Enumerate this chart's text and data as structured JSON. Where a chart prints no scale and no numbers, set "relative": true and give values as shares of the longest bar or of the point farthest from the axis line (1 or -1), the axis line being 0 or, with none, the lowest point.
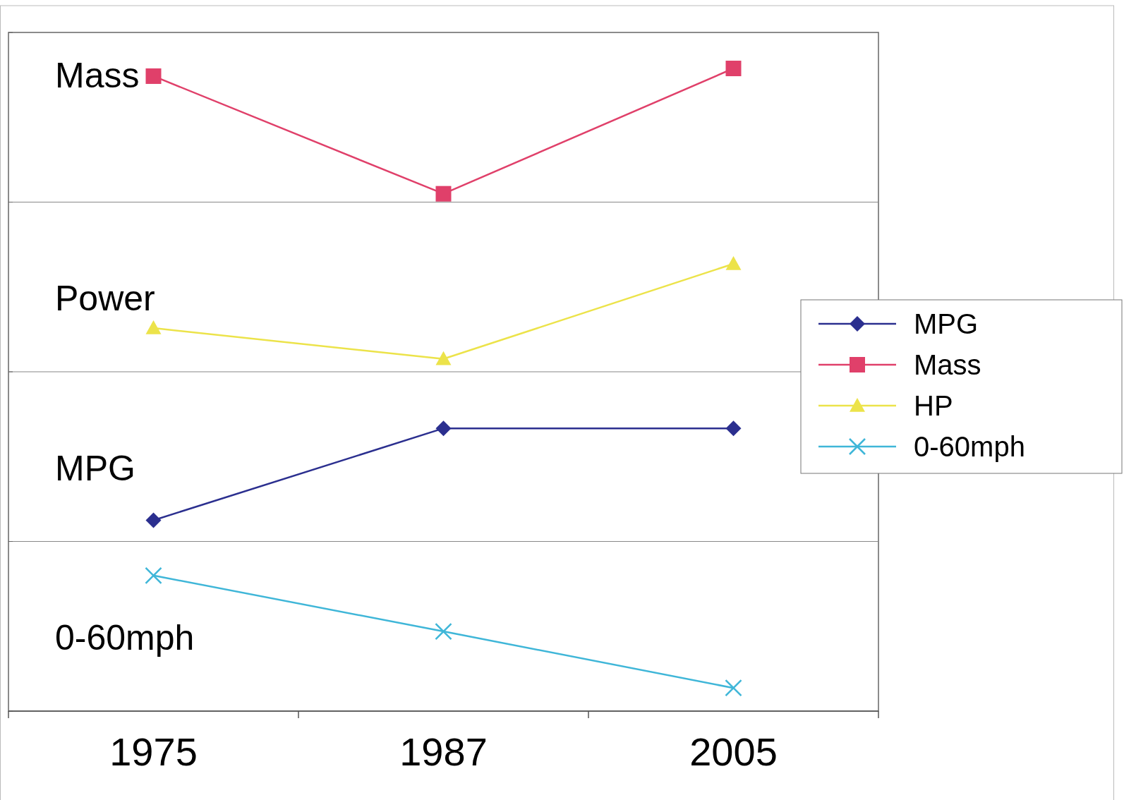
{
  "chart_data": {
    "type": "line",
    "relative": true,
    "categories": [
      "1975",
      "1987",
      "2005"
    ],
    "series": [
      {
        "name": "MPG",
        "color": "#2b2f8f",
        "marker": "diamond",
        "values": [
          0.297,
          0.44,
          0.44
        ]
      },
      {
        "name": "Mass",
        "color": "#e0406a",
        "marker": "square",
        "values": [
          0.988,
          0.805,
          1.0
        ]
      },
      {
        "name": "HP",
        "color": "#ece34a",
        "marker": "triangle",
        "values": [
          0.596,
          0.548,
          0.696
        ]
      },
      {
        "name": "0-60mph",
        "color": "#3fb6d8",
        "marker": "cross",
        "values": [
          0.211,
          0.124,
          0.036
        ]
      }
    ],
    "annotations": [
      "Mass",
      "Power",
      "MPG",
      "0-60mph"
    ],
    "grid": "y",
    "legend": "right"
  }
}
